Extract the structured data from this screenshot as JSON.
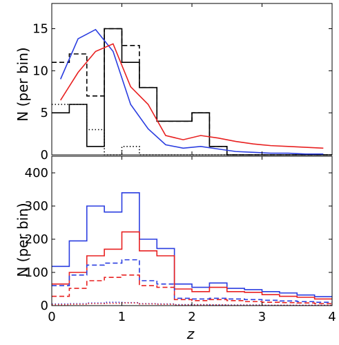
{
  "chart_data": [
    {
      "type": "line",
      "panel": "top",
      "xlabel": "",
      "ylabel": "N (per bin)",
      "xlim": [
        0,
        4
      ],
      "ylim": [
        0,
        18
      ],
      "yticks": [
        0,
        5,
        10,
        15
      ],
      "grid": false,
      "legend": "none",
      "step_series": [
        {
          "color": "#000000",
          "dash": "solid",
          "edges": [
            0,
            0.25,
            0.5,
            0.75,
            1.0,
            1.25,
            1.5,
            1.75,
            2.0,
            2.25,
            2.5,
            2.75,
            3.0,
            3.25,
            3.5,
            3.75,
            4.0
          ],
          "values": [
            5,
            6,
            1,
            15,
            11,
            8,
            4,
            4,
            5,
            1,
            0,
            0,
            0,
            0,
            0,
            0
          ]
        },
        {
          "color": "#000000",
          "dash": "dashed",
          "edges": [
            0,
            0.25,
            0.5,
            0.75,
            1.0,
            1.25,
            1.5,
            1.75,
            2.0,
            2.25,
            2.5,
            2.75,
            3.0,
            3.25,
            3.5,
            3.75,
            4.0
          ],
          "values": [
            11,
            12,
            7,
            15,
            13,
            8,
            4,
            4,
            5,
            1,
            0,
            0,
            0,
            0,
            0,
            0
          ]
        },
        {
          "color": "#000000",
          "dash": "dotted",
          "edges": [
            0,
            0.25,
            0.5,
            0.75,
            1.0,
            1.25,
            1.5,
            1.75,
            2.0,
            2.25,
            2.5,
            2.75,
            3.0,
            3.25,
            3.5,
            3.75,
            4.0
          ],
          "values": [
            6,
            6,
            3,
            0,
            1,
            0,
            0,
            0,
            0,
            0,
            0,
            0,
            0,
            0,
            0,
            0
          ]
        }
      ],
      "line_series": [
        {
          "color": "#2a3de0",
          "x": [
            0.125,
            0.375,
            0.625,
            0.875,
            1.125,
            1.375,
            1.625,
            1.875,
            2.125,
            2.375,
            2.625,
            2.875,
            3.125,
            3.375,
            3.625,
            3.875
          ],
          "y": [
            9.0,
            13.8,
            14.9,
            12.3,
            6.0,
            3.1,
            1.2,
            0.8,
            1.0,
            0.7,
            0.4,
            0.3,
            0.2,
            0.2,
            0.1,
            0.1
          ]
        },
        {
          "color": "#e82020",
          "x": [
            0.125,
            0.375,
            0.625,
            0.875,
            1.125,
            1.375,
            1.625,
            1.875,
            2.125,
            2.375,
            2.625,
            2.875,
            3.125,
            3.375,
            3.625,
            3.875
          ],
          "y": [
            6.5,
            9.8,
            12.3,
            13.2,
            8.1,
            6.0,
            2.3,
            1.8,
            2.3,
            2.0,
            1.6,
            1.3,
            1.1,
            1.0,
            0.9,
            0.8
          ]
        }
      ]
    },
    {
      "type": "line",
      "panel": "bottom",
      "xlabel": "z",
      "ylabel": "N (per bin)",
      "xlim": [
        0,
        4
      ],
      "ylim": [
        0,
        450
      ],
      "yticks": [
        0,
        100,
        200,
        300,
        400
      ],
      "xticks": [
        0,
        1,
        2,
        3,
        4
      ],
      "grid": false,
      "legend": "none",
      "step_series": [
        {
          "color": "#2a3de0",
          "dash": "solid",
          "edges": [
            0,
            0.25,
            0.5,
            0.75,
            1.0,
            1.25,
            1.5,
            1.75,
            2.0,
            2.25,
            2.5,
            2.75,
            3.0,
            3.25,
            3.5,
            3.75,
            4.0
          ],
          "values": [
            118,
            195,
            300,
            282,
            340,
            200,
            172,
            65,
            55,
            68,
            52,
            48,
            42,
            38,
            32,
            27
          ]
        },
        {
          "color": "#e82020",
          "dash": "solid",
          "edges": [
            0,
            0.25,
            0.5,
            0.75,
            1.0,
            1.25,
            1.5,
            1.75,
            2.0,
            2.25,
            2.5,
            2.75,
            3.0,
            3.25,
            3.5,
            3.75,
            4.0
          ],
          "values": [
            65,
            100,
            150,
            170,
            222,
            165,
            150,
            50,
            42,
            55,
            42,
            40,
            33,
            28,
            25,
            20
          ]
        },
        {
          "color": "#2a3de0",
          "dash": "dashed",
          "edges": [
            0,
            0.25,
            0.5,
            0.75,
            1.0,
            1.25,
            1.5,
            1.75,
            2.0,
            2.25,
            2.5,
            2.75,
            3.0,
            3.25,
            3.5,
            3.75,
            4.0
          ],
          "values": [
            60,
            92,
            122,
            128,
            138,
            75,
            65,
            22,
            20,
            22,
            20,
            18,
            16,
            14,
            12,
            10
          ]
        },
        {
          "color": "#e82020",
          "dash": "dashed",
          "edges": [
            0,
            0.25,
            0.5,
            0.75,
            1.0,
            1.25,
            1.5,
            1.75,
            2.0,
            2.25,
            2.5,
            2.75,
            3.0,
            3.25,
            3.5,
            3.75,
            4.0
          ],
          "values": [
            28,
            52,
            75,
            85,
            92,
            60,
            55,
            18,
            15,
            18,
            15,
            12,
            10,
            9,
            8,
            6
          ]
        },
        {
          "color": "#2a3de0",
          "dash": "dotted",
          "edges": [
            0,
            0.25,
            0.5,
            0.75,
            1.0,
            1.25,
            1.5,
            1.75,
            2.0,
            2.25,
            2.5,
            2.75,
            3.0,
            3.25,
            3.5,
            3.75,
            4.0
          ],
          "values": [
            5,
            6,
            8,
            10,
            9,
            6,
            5,
            3,
            3,
            2,
            2,
            2,
            1,
            1,
            1,
            1
          ]
        },
        {
          "color": "#e82020",
          "dash": "dotted",
          "edges": [
            0,
            0.25,
            0.5,
            0.75,
            1.0,
            1.25,
            1.5,
            1.75,
            2.0,
            2.25,
            2.5,
            2.75,
            3.0,
            3.25,
            3.5,
            3.75,
            4.0
          ],
          "values": [
            3,
            4,
            6,
            7,
            8,
            5,
            4,
            2,
            2,
            2,
            1,
            1,
            1,
            1,
            1,
            1
          ]
        }
      ],
      "line_series": []
    }
  ]
}
